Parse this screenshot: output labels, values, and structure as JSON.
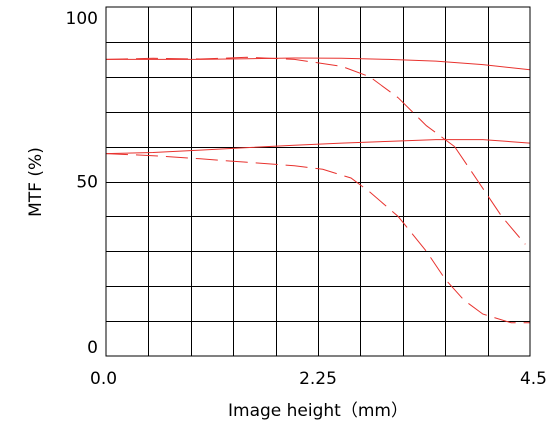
{
  "chart_data": {
    "type": "line",
    "title": "",
    "xlabel": "Image height（mm）",
    "ylabel": "MTF (%)",
    "xlim": [
      0.0,
      4.5
    ],
    "ylim": [
      0,
      100
    ],
    "x_tick_labels": [
      "0.0",
      "2.25",
      "4.5"
    ],
    "x_tick_values": [
      0.0,
      2.25,
      4.5
    ],
    "y_tick_labels": [
      "0",
      "50",
      "100"
    ],
    "y_tick_values": [
      0,
      50,
      100
    ],
    "grid": true,
    "grid_x_step": 0.45,
    "grid_y_step": 10,
    "line_color": "#e8322e",
    "series": [
      {
        "style": "solid",
        "x": [
          0.0,
          0.5,
          1.0,
          1.5,
          2.0,
          2.5,
          3.0,
          3.5,
          4.0,
          4.5
        ],
        "values": [
          85,
          85,
          85,
          85.2,
          85.4,
          85.3,
          85,
          84.5,
          83.5,
          82
        ]
      },
      {
        "style": "dashed",
        "x": [
          0.0,
          0.5,
          1.0,
          1.5,
          2.0,
          2.5,
          2.8,
          3.1,
          3.4,
          3.7
        ],
        "values": [
          85,
          85.3,
          85.1,
          85.6,
          85,
          83,
          80,
          74,
          66,
          60
        ]
      },
      {
        "style": "solid",
        "x": [
          0.0,
          0.5,
          1.0,
          1.5,
          2.0,
          2.5,
          3.0,
          3.5,
          4.0,
          4.5
        ],
        "values": [
          58,
          58.3,
          59,
          59.7,
          60.4,
          61,
          61.5,
          62,
          62,
          61
        ]
      },
      {
        "style": "dashed",
        "x": [
          0.0,
          0.5,
          1.0,
          1.5,
          2.0,
          2.3,
          2.6,
          2.8,
          3.1,
          3.4,
          3.6,
          3.8,
          4.0,
          4.3,
          4.5
        ],
        "values": [
          58,
          57.4,
          56.5,
          55.5,
          54.5,
          53.5,
          51,
          47,
          40,
          30,
          22,
          16,
          12,
          9.5,
          9.5
        ]
      },
      {
        "style": "dashed",
        "x": [
          3.7,
          3.95,
          4.2,
          4.45
        ],
        "values": [
          60,
          50,
          40,
          32
        ]
      }
    ]
  }
}
